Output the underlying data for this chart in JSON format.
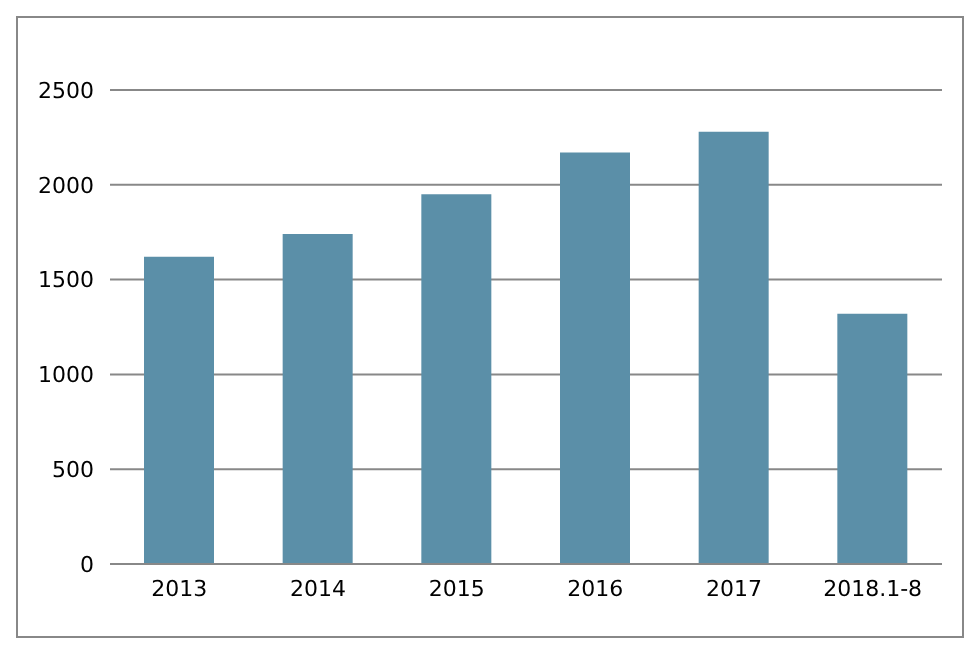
{
  "chart_data": {
    "type": "bar",
    "categories": [
      "2013",
      "2014",
      "2015",
      "2016",
      "2017",
      "2018.1-8"
    ],
    "series": [
      {
        "color": "#5b8fa8",
        "values": [
          1620,
          1740,
          1950,
          2170,
          2280,
          1320
        ]
      }
    ],
    "ylim": [
      0,
      2500
    ],
    "yticks": [
      0,
      500,
      1000,
      1500,
      2000,
      2500
    ],
    "grid": "y"
  }
}
